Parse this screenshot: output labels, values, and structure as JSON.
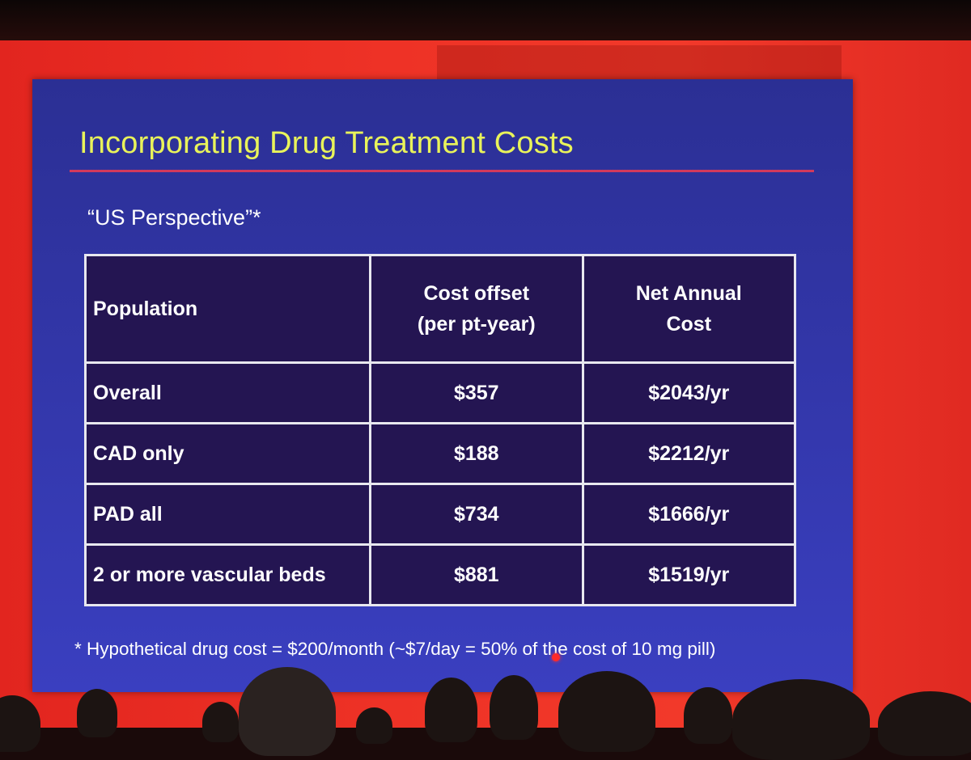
{
  "slide": {
    "title": "Incorporating Drug Treatment Costs",
    "subtitle": "“US Perspective”*",
    "table": {
      "headers": [
        "Population",
        "Cost offset\n(per pt-year)",
        "Net Annual\nCost"
      ],
      "rows": [
        [
          "Overall",
          "$357",
          "$2043/yr"
        ],
        [
          "CAD only",
          "$188",
          "$2212/yr"
        ],
        [
          "PAD all",
          "$734",
          "$1666/yr"
        ],
        [
          "2 or more vascular beds",
          "$881",
          "$1519/yr"
        ]
      ]
    },
    "footnote": "* Hypothetical drug cost = $200/month (~$7/day = 50% of the cost of 10 mg pill)"
  },
  "colors": {
    "slide_background": "#3236a8",
    "title_text": "#e9f35a",
    "title_rule": "#d23a5c",
    "table_cell": "#241552",
    "table_border": "#e8e8ef",
    "backdrop": "#ee3226"
  }
}
